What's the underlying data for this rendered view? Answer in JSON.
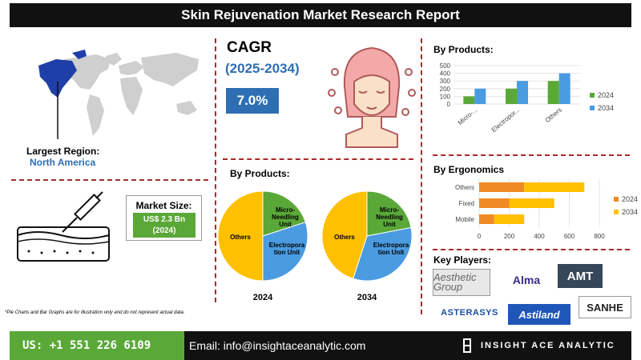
{
  "title": "Skin Rejuvenation Market Research Report",
  "region": {
    "label": "Largest Region:",
    "value": "North America"
  },
  "cagr": {
    "label": "CAGR",
    "period": "(2025-2034)",
    "value": "7.0%"
  },
  "market_size": {
    "label": "Market Size:",
    "value_line1": "US$ 2.3 Bn",
    "value_line2": "(2024)"
  },
  "disclaimer": "*Pie Charts and Bar Graphs are for illustration only and do not represent actual data.",
  "pies_heading": "By Products:",
  "bar_products_heading": "By Products:",
  "bar_ergonomics_heading": "By Ergonomics",
  "key_players_heading": "Key Players:",
  "key_players": [
    "Aesthetic Group",
    "Alma",
    "AMT",
    "ASTERASYS",
    "Astiland",
    "SANHE"
  ],
  "footer": {
    "phone": "US:  +1 551 226 6109",
    "email": "Email: info@insightaceanalytic.com",
    "brand": "INSIGHT ACE ANALYTIC"
  },
  "colors": {
    "orange": "#f08a24",
    "blue": "#2e6fb3",
    "green": "#5aa838",
    "yellow": "#ffc000",
    "lightblue": "#4a9be0",
    "bar_green": "#5aa838"
  },
  "chart_data": [
    {
      "type": "pie",
      "title": "2024",
      "slices": [
        {
          "label": "Micro-Needling Unit",
          "value": 20,
          "color": "#5aa838"
        },
        {
          "label": "Electroporation Unit",
          "value": 30,
          "color": "#4a9be0"
        },
        {
          "label": "Others",
          "value": 50,
          "color": "#ffc000"
        }
      ]
    },
    {
      "type": "pie",
      "title": "2034",
      "slices": [
        {
          "label": "Micro-Needling Unit",
          "value": 22,
          "color": "#5aa838"
        },
        {
          "label": "Electroporation Unit",
          "value": 33,
          "color": "#4a9be0"
        },
        {
          "label": "Others",
          "value": 45,
          "color": "#ffc000"
        }
      ]
    },
    {
      "type": "bar",
      "title": "By Products:",
      "categories": [
        "Micro-...",
        "Electropor...",
        "Others"
      ],
      "series": [
        {
          "name": "2024",
          "values": [
            100,
            200,
            300
          ],
          "color": "#5aa838"
        },
        {
          "name": "2034",
          "values": [
            200,
            300,
            400
          ],
          "color": "#4a9be0"
        }
      ],
      "ylim": [
        0,
        500
      ],
      "yticks": [
        "0",
        "100",
        "200",
        "300",
        "400",
        "500"
      ],
      "legend": "right"
    },
    {
      "type": "bar",
      "orientation": "horizontal",
      "stacked": true,
      "title": "By Ergonomics",
      "categories": [
        "Others",
        "Fixed",
        "Mobile"
      ],
      "series": [
        {
          "name": "2024",
          "values": [
            300,
            200,
            100
          ],
          "color": "#f08a24"
        },
        {
          "name": "2034",
          "values": [
            400,
            300,
            200
          ],
          "color": "#ffc000"
        }
      ],
      "xlim": [
        0,
        800
      ],
      "xticks": [
        "0",
        "200",
        "400",
        "600",
        "800"
      ],
      "legend": "right"
    }
  ]
}
